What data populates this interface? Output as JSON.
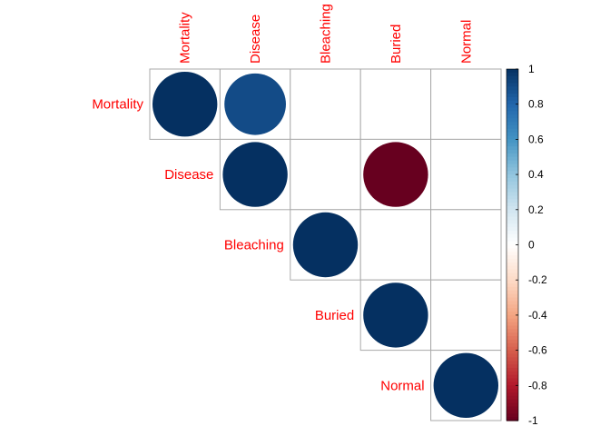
{
  "chart_data": {
    "type": "heatmap",
    "variables": [
      "Mortality",
      "Disease",
      "Bleaching",
      "Buried",
      "Normal"
    ],
    "matrix_shape": "upper",
    "glyph": "circle",
    "values": [
      [
        1,
        0.9,
        null,
        null,
        null
      ],
      [
        null,
        1,
        null,
        -1,
        null
      ],
      [
        null,
        null,
        1,
        null,
        null
      ],
      [
        null,
        null,
        null,
        1,
        null
      ],
      [
        null,
        null,
        null,
        null,
        1
      ]
    ],
    "label_color": "#ff0000",
    "grid_color": "#aaaaaa",
    "colorbar": {
      "range": [
        -1,
        1
      ],
      "ticks": [
        "1",
        "0.8",
        "0.6",
        "0.4",
        "0.2",
        "0",
        "-0.2",
        "-0.4",
        "-0.6",
        "-0.8",
        "-1"
      ],
      "tick_values": [
        1,
        0.8,
        0.6,
        0.4,
        0.2,
        0,
        -0.2,
        -0.4,
        -0.6,
        -0.8,
        -1
      ],
      "colors": [
        "#67001f",
        "#b2182b",
        "#d6604d",
        "#f4a582",
        "#fddbc7",
        "#ffffff",
        "#d1e5f0",
        "#92c5de",
        "#4393c3",
        "#2166ac",
        "#053061"
      ]
    }
  }
}
